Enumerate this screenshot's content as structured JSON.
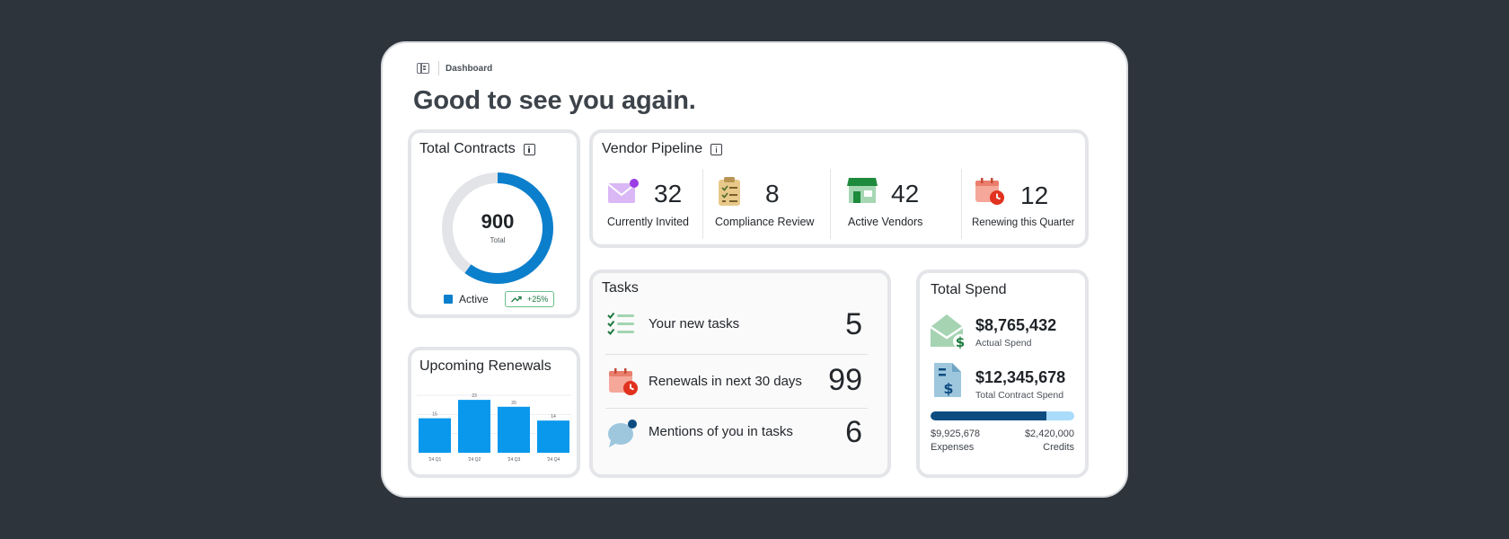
{
  "breadcrumb": {
    "label": "Dashboard",
    "icon": "sidebar-toggle-icon"
  },
  "greeting": "Good to see you again.",
  "total_contracts": {
    "title": "Total Contracts",
    "value": "900",
    "value_label": "Total",
    "active_fraction": 0.6,
    "legend_label": "Active",
    "badge": "+25%",
    "colors": {
      "active": "#0b7fcc",
      "track": "#e2e4e8"
    }
  },
  "upcoming_renewals": {
    "title": "Upcoming Renewals",
    "chart_data": {
      "type": "bar",
      "categories": [
        "'24 Q1",
        "'24 Q2",
        "'24 Q3",
        "'24 Q4"
      ],
      "values": [
        15,
        23,
        20,
        14
      ],
      "ylim": [
        0,
        25
      ],
      "color": "#0a98ec"
    }
  },
  "vendor_pipeline": {
    "title": "Vendor Pipeline",
    "stats": [
      {
        "value": "32",
        "label": "Currently Invited",
        "icon": "envelope-icon"
      },
      {
        "value": "8",
        "label": "Compliance Review",
        "icon": "clipboard-checklist-icon"
      },
      {
        "value": "42",
        "label": "Active Vendors",
        "icon": "storefront-icon"
      },
      {
        "value": "12",
        "label": "Renewing this Quarter",
        "icon": "calendar-clock-icon"
      }
    ]
  },
  "tasks": {
    "title": "Tasks",
    "rows": [
      {
        "label": "Your new tasks",
        "count": "5",
        "icon": "checklist-icon"
      },
      {
        "label": "Renewals in next 30 days",
        "count": "99",
        "icon": "calendar-clock-icon"
      },
      {
        "label": "Mentions of you in tasks",
        "count": "6",
        "icon": "chat-bubble-icon"
      }
    ]
  },
  "total_spend": {
    "title": "Total Spend",
    "actual": {
      "value": "$8,765,432",
      "label": "Actual Spend",
      "icon": "envelope-dollar-icon"
    },
    "contract": {
      "value": "$12,345,678",
      "label": "Total Contract Spend",
      "icon": "document-dollar-icon"
    },
    "expenses": {
      "value": "$9,925,678",
      "label": "Expenses"
    },
    "credits": {
      "value": "$2,420,000",
      "label": "Credits"
    },
    "expenses_fraction": 0.804,
    "colors": {
      "expenses": "#0d4c80",
      "credits": "#a9dcfa"
    }
  }
}
